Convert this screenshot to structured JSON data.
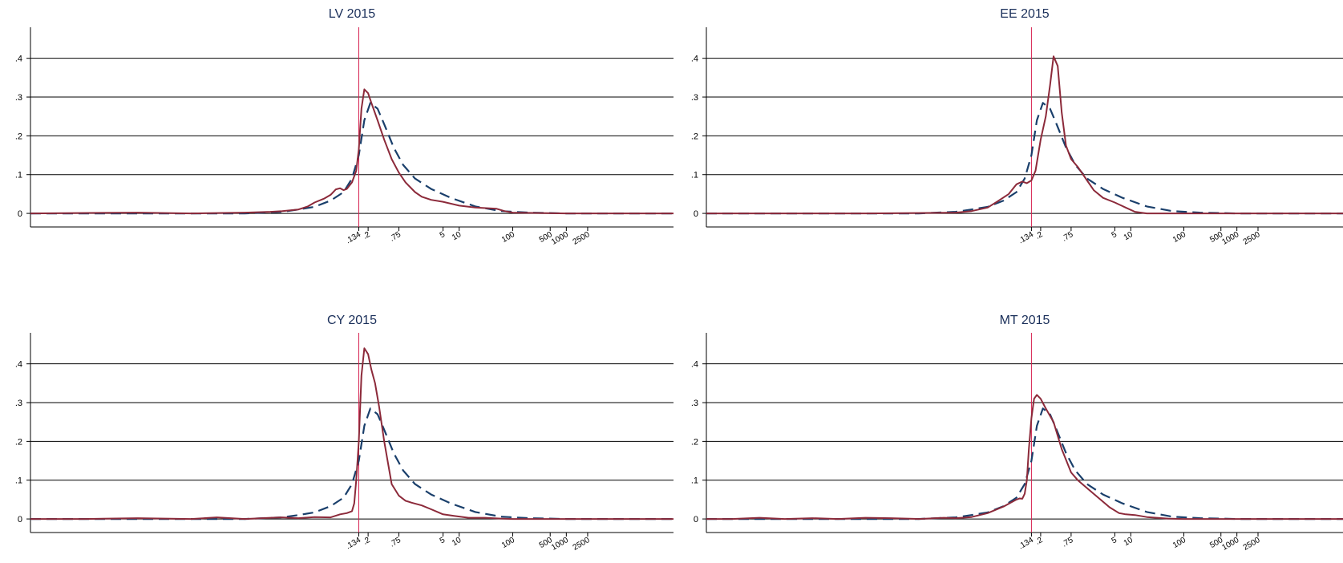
{
  "chart_data": [
    {
      "type": "line",
      "title": "LV 2015",
      "xlabel": "",
      "ylabel": "",
      "x_scale": "log",
      "xlim": [
        1e-07,
        100000
      ],
      "ylim": [
        -0.035,
        0.48
      ],
      "yticks": [
        0,
        0.1,
        0.2,
        0.3,
        0.4
      ],
      "ytick_labels": [
        "0",
        ".1",
        ".2",
        ".3",
        ".4"
      ],
      "xticks": [
        0.134,
        0.2,
        0.75,
        5,
        10,
        100,
        500,
        1000,
        2500
      ],
      "xtick_labels": [
        ".134",
        ".2",
        ".75",
        "5",
        "10",
        "100",
        "500",
        "1000",
        "2500"
      ],
      "grid": true,
      "reference_line_x": 0.134,
      "series": [
        {
          "style": "dashed",
          "color": "#1a3f6b",
          "x": [
            1e-07,
            0.0001,
            0.001,
            0.005,
            0.01,
            0.02,
            0.04,
            0.07,
            0.1,
            0.134,
            0.17,
            0.22,
            0.3,
            0.4,
            0.6,
            0.9,
            1.5,
            3,
            7,
            20,
            60,
            200,
            1000,
            100000
          ],
          "y": [
            0,
            0,
            0,
            0.004,
            0.01,
            0.017,
            0.033,
            0.055,
            0.09,
            0.15,
            0.24,
            0.285,
            0.27,
            0.23,
            0.17,
            0.125,
            0.09,
            0.063,
            0.04,
            0.018,
            0.006,
            0.002,
            0,
            0
          ]
        },
        {
          "style": "solid",
          "color": "#8c2a3a",
          "x": [
            1e-07,
            1e-05,
            0.0001,
            0.001,
            0.003,
            0.005,
            0.01,
            0.015,
            0.02,
            0.03,
            0.04,
            0.05,
            0.06,
            0.07,
            0.08,
            0.1,
            0.12,
            0.134,
            0.15,
            0.17,
            0.2,
            0.23,
            0.3,
            0.4,
            0.55,
            0.75,
            1,
            1.5,
            2,
            3,
            5,
            10,
            20,
            50,
            70,
            100,
            300,
            1000,
            100000
          ],
          "y": [
            0,
            0.002,
            0,
            0.002,
            0.004,
            0.006,
            0.01,
            0.018,
            0.028,
            0.038,
            0.048,
            0.062,
            0.065,
            0.06,
            0.063,
            0.08,
            0.11,
            0.165,
            0.27,
            0.32,
            0.31,
            0.285,
            0.24,
            0.19,
            0.14,
            0.105,
            0.08,
            0.055,
            0.043,
            0.035,
            0.03,
            0.02,
            0.015,
            0.012,
            0.006,
            0.002,
            0.001,
            0,
            0
          ]
        }
      ]
    },
    {
      "type": "line",
      "title": "EE 2015",
      "xlabel": "",
      "ylabel": "",
      "x_scale": "log",
      "xlim": [
        1e-07,
        100000
      ],
      "ylim": [
        -0.035,
        0.48
      ],
      "yticks": [
        0,
        0.1,
        0.2,
        0.3,
        0.4
      ],
      "ytick_labels": [
        "0",
        ".1",
        ".2",
        ".3",
        ".4"
      ],
      "xticks": [
        0.134,
        0.2,
        0.75,
        5,
        10,
        100,
        500,
        1000,
        2500
      ],
      "xtick_labels": [
        ".134",
        ".2",
        ".75",
        "5",
        "10",
        "100",
        "500",
        "1000",
        "2500"
      ],
      "grid": true,
      "reference_line_x": 0.134,
      "series": [
        {
          "style": "dashed",
          "color": "#1a3f6b",
          "x": [
            1e-07,
            0.0001,
            0.001,
            0.005,
            0.01,
            0.02,
            0.04,
            0.07,
            0.1,
            0.134,
            0.17,
            0.22,
            0.3,
            0.4,
            0.6,
            0.9,
            1.5,
            3,
            7,
            20,
            60,
            200,
            1000,
            100000
          ],
          "y": [
            0,
            0,
            0,
            0.004,
            0.01,
            0.017,
            0.033,
            0.055,
            0.09,
            0.15,
            0.24,
            0.285,
            0.27,
            0.23,
            0.17,
            0.125,
            0.09,
            0.063,
            0.04,
            0.018,
            0.006,
            0.002,
            0,
            0
          ]
        },
        {
          "style": "solid",
          "color": "#8c2a3a",
          "x": [
            1e-07,
            0.0001,
            0.001,
            0.005,
            0.01,
            0.02,
            0.03,
            0.05,
            0.07,
            0.09,
            0.11,
            0.134,
            0.16,
            0.2,
            0.25,
            0.3,
            0.35,
            0.42,
            0.5,
            0.6,
            0.75,
            1,
            1.5,
            2,
            3,
            5,
            8,
            12,
            20,
            50,
            100,
            1000,
            100000
          ],
          "y": [
            0,
            0,
            0.001,
            0.002,
            0.006,
            0.015,
            0.03,
            0.05,
            0.075,
            0.082,
            0.078,
            0.085,
            0.11,
            0.19,
            0.25,
            0.33,
            0.405,
            0.38,
            0.26,
            0.175,
            0.14,
            0.12,
            0.085,
            0.06,
            0.04,
            0.028,
            0.015,
            0.004,
            0,
            0,
            0,
            0,
            0
          ]
        }
      ]
    },
    {
      "type": "line",
      "title": "CY 2015",
      "xlabel": "",
      "ylabel": "",
      "x_scale": "log",
      "xlim": [
        1e-07,
        100000
      ],
      "ylim": [
        -0.035,
        0.48
      ],
      "yticks": [
        0,
        0.1,
        0.2,
        0.3,
        0.4
      ],
      "ytick_labels": [
        "0",
        ".1",
        ".2",
        ".3",
        ".4"
      ],
      "xticks": [
        0.134,
        0.2,
        0.75,
        5,
        10,
        100,
        500,
        1000,
        2500
      ],
      "xtick_labels": [
        ".134",
        ".2",
        ".75",
        "5",
        "10",
        "100",
        "500",
        "1000",
        "2500"
      ],
      "grid": true,
      "reference_line_x": 0.134,
      "series": [
        {
          "style": "dashed",
          "color": "#1a3f6b",
          "x": [
            1e-07,
            0.0001,
            0.001,
            0.005,
            0.01,
            0.02,
            0.04,
            0.07,
            0.1,
            0.134,
            0.17,
            0.22,
            0.3,
            0.4,
            0.6,
            0.9,
            1.5,
            3,
            7,
            20,
            60,
            200,
            1000,
            100000
          ],
          "y": [
            0,
            0,
            0,
            0.004,
            0.01,
            0.017,
            0.033,
            0.055,
            0.09,
            0.15,
            0.24,
            0.285,
            0.27,
            0.23,
            0.17,
            0.125,
            0.09,
            0.063,
            0.04,
            0.018,
            0.006,
            0.002,
            0,
            0
          ]
        },
        {
          "style": "solid",
          "color": "#8c2a3a",
          "x": [
            1e-07,
            1e-06,
            1e-05,
            0.0001,
            0.0003,
            0.001,
            0.003,
            0.005,
            0.01,
            0.02,
            0.04,
            0.06,
            0.08,
            0.1,
            0.11,
            0.12,
            0.134,
            0.15,
            0.17,
            0.2,
            0.23,
            0.27,
            0.32,
            0.4,
            0.55,
            0.75,
            1,
            1.3,
            2,
            3,
            5,
            8,
            15,
            30,
            60,
            100,
            1000,
            100000
          ],
          "y": [
            0,
            0,
            0.002,
            0,
            0.004,
            0,
            0.003,
            0.004,
            0.002,
            0.005,
            0.004,
            0.012,
            0.015,
            0.02,
            0.04,
            0.1,
            0.2,
            0.37,
            0.44,
            0.425,
            0.385,
            0.35,
            0.29,
            0.2,
            0.09,
            0.06,
            0.047,
            0.042,
            0.035,
            0.025,
            0.012,
            0.008,
            0.003,
            0.003,
            0.001,
            0,
            0,
            0
          ]
        }
      ]
    },
    {
      "type": "line",
      "title": "MT 2015",
      "xlabel": "",
      "ylabel": "",
      "x_scale": "log",
      "xlim": [
        1e-07,
        100000
      ],
      "ylim": [
        -0.035,
        0.48
      ],
      "yticks": [
        0,
        0.1,
        0.2,
        0.3,
        0.4
      ],
      "ytick_labels": [
        "0",
        ".1",
        ".2",
        ".3",
        ".4"
      ],
      "xticks": [
        0.134,
        0.2,
        0.75,
        5,
        10,
        100,
        500,
        1000,
        2500
      ],
      "xtick_labels": [
        ".134",
        ".2",
        ".75",
        "5",
        "10",
        "100",
        "500",
        "1000",
        "2500"
      ],
      "grid": true,
      "reference_line_x": 0.134,
      "series": [
        {
          "style": "dashed",
          "color": "#1a3f6b",
          "x": [
            1e-07,
            0.0001,
            0.001,
            0.005,
            0.01,
            0.02,
            0.04,
            0.07,
            0.1,
            0.134,
            0.17,
            0.22,
            0.3,
            0.4,
            0.6,
            0.9,
            1.5,
            3,
            7,
            20,
            60,
            200,
            1000,
            100000
          ],
          "y": [
            0,
            0,
            0,
            0.004,
            0.01,
            0.017,
            0.033,
            0.055,
            0.09,
            0.15,
            0.24,
            0.285,
            0.27,
            0.23,
            0.17,
            0.125,
            0.09,
            0.063,
            0.04,
            0.018,
            0.006,
            0.002,
            0,
            0
          ]
        },
        {
          "style": "solid",
          "color": "#8c2a3a",
          "x": [
            1e-07,
            3e-07,
            1e-06,
            3e-06,
            1e-05,
            3e-05,
            0.0001,
            0.0003,
            0.001,
            0.003,
            0.005,
            0.01,
            0.02,
            0.04,
            0.06,
            0.07,
            0.08,
            0.09,
            0.1,
            0.11,
            0.12,
            0.134,
            0.15,
            0.17,
            0.2,
            0.25,
            0.35,
            0.5,
            0.75,
            1,
            2,
            4,
            6,
            8,
            12,
            20,
            50,
            100,
            1000,
            100000
          ],
          "y": [
            0,
            0,
            0.003,
            0,
            0.002,
            0,
            0.003,
            0.002,
            0,
            0.003,
            0.002,
            0.005,
            0.015,
            0.032,
            0.045,
            0.05,
            0.053,
            0.052,
            0.065,
            0.1,
            0.18,
            0.26,
            0.31,
            0.32,
            0.31,
            0.285,
            0.25,
            0.18,
            0.12,
            0.1,
            0.065,
            0.03,
            0.015,
            0.012,
            0.01,
            0.005,
            0.001,
            0,
            0,
            0
          ]
        }
      ]
    }
  ]
}
